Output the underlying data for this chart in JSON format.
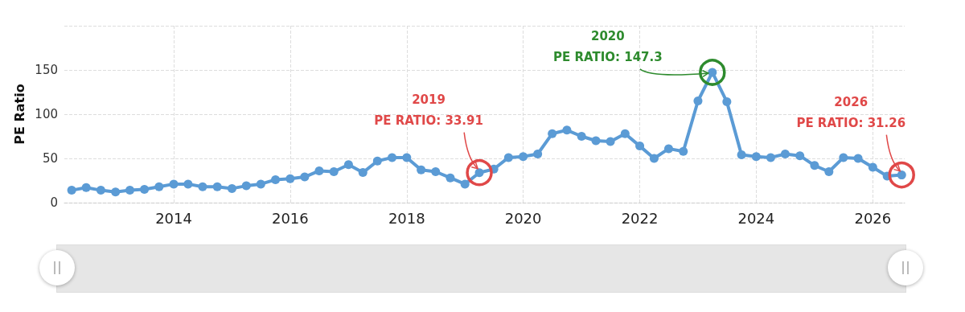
{
  "chart_data": {
    "type": "line",
    "ylabel": "PE Ratio",
    "x": [
      "2012-04",
      "2012-07",
      "2012-10",
      "2013-01",
      "2013-04",
      "2013-07",
      "2013-10",
      "2014-01",
      "2014-04",
      "2014-07",
      "2014-10",
      "2015-01",
      "2015-04",
      "2015-07",
      "2015-10",
      "2016-01",
      "2016-04",
      "2016-07",
      "2016-10",
      "2017-01",
      "2017-04",
      "2017-07",
      "2017-10",
      "2018-01",
      "2018-04",
      "2018-07",
      "2018-10",
      "2019-01",
      "2019-04",
      "2019-07",
      "2019-10",
      "2020-01",
      "2020-04",
      "2020-07",
      "2020-10",
      "2021-01",
      "2021-04",
      "2021-07",
      "2021-10",
      "2022-01",
      "2022-04",
      "2022-07",
      "2022-10",
      "2023-01",
      "2023-04",
      "2023-07",
      "2023-10",
      "2024-01",
      "2024-04",
      "2024-07",
      "2024-10",
      "2025-01",
      "2025-04",
      "2025-07",
      "2025-10",
      "2026-01",
      "2026-04",
      "2026-07"
    ],
    "series": [
      {
        "color": "#5b9bd5",
        "values": [
          14,
          17,
          14,
          12,
          14,
          15,
          18,
          21,
          21,
          18,
          18,
          16,
          19,
          21,
          26,
          27,
          29,
          36,
          35,
          43,
          34,
          47,
          51,
          51,
          37,
          35,
          28,
          21,
          33.91,
          38,
          51,
          52,
          55,
          78,
          82,
          75,
          70,
          69,
          78,
          64,
          50,
          61,
          58,
          115,
          147.3,
          114,
          54,
          52,
          51,
          55,
          53,
          42,
          35,
          51,
          50,
          40,
          30,
          31.26
        ]
      }
    ],
    "xlim": [
      "2012-02-15",
      "2026-07-20"
    ],
    "xticks": [
      "2014",
      "2016",
      "2018",
      "2020",
      "2022",
      "2024",
      "2026"
    ],
    "ylim": [
      0,
      200
    ],
    "yticks": [
      0,
      50,
      100,
      150,
      {
        "value": 200,
        "label": null
      }
    ],
    "grid": true,
    "marker": "circle",
    "line_style": "solid",
    "annotations": [
      {
        "text": "2019\nPE RATIO: 33.91",
        "x": "2019-04",
        "y": 33.91
      },
      {
        "text": "2020\nPE RATIO: 147.3",
        "x": "2023-04",
        "y": 147.3
      },
      {
        "text": "2026\nPE RATIO: 31.26",
        "x": "2026-07",
        "y": 31.26
      }
    ]
  }
}
